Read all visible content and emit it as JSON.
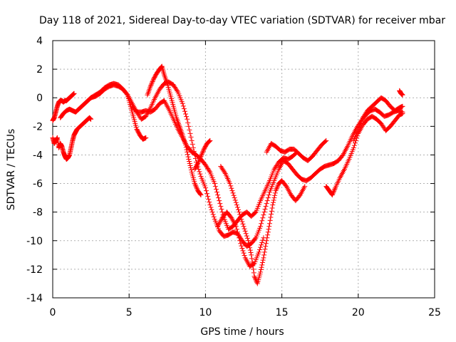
{
  "chart_data": {
    "type": "scatter",
    "title": "Day 118 of 2021, Sidereal Day-to-day VTEC variation (SDTVAR) for receiver mbar",
    "xlabel": "GPS time / hours",
    "ylabel": "SDTVAR / TECUs",
    "xlim": [
      0,
      25
    ],
    "ylim": [
      -14,
      4
    ],
    "xticks": [
      0,
      5,
      10,
      15,
      20,
      25
    ],
    "yticks": [
      -14,
      -12,
      -10,
      -8,
      -6,
      -4,
      -2,
      0,
      2,
      4
    ],
    "grid": true,
    "marker": "plus",
    "color": "#ff0000",
    "series": [
      {
        "points": [
          [
            0.0,
            -1.6
          ],
          [
            0.1,
            -1.4
          ],
          [
            0.2,
            -1.0
          ],
          [
            0.3,
            -0.6
          ],
          [
            0.4,
            -0.3
          ],
          [
            0.5,
            -0.2
          ],
          [
            0.6,
            -0.2
          ],
          [
            0.7,
            -0.3
          ],
          [
            0.8,
            -0.2
          ],
          [
            0.9,
            -0.2
          ],
          [
            1.0,
            -0.1
          ],
          [
            1.1,
            0.0
          ],
          [
            1.2,
            0.1
          ],
          [
            1.3,
            0.2
          ],
          [
            1.4,
            0.3
          ]
        ]
      },
      {
        "points": [
          [
            0.0,
            -2.8
          ],
          [
            0.1,
            -3.2
          ],
          [
            0.2,
            -3.0
          ],
          [
            0.3,
            -2.8
          ],
          [
            0.4,
            -3.5
          ],
          [
            0.5,
            -3.2
          ],
          [
            0.6,
            -3.4
          ],
          [
            0.7,
            -3.8
          ],
          [
            0.8,
            -4.1
          ],
          [
            0.9,
            -4.3
          ],
          [
            1.0,
            -4.2
          ],
          [
            1.1,
            -4.0
          ],
          [
            1.2,
            -3.5
          ],
          [
            1.3,
            -3.0
          ],
          [
            1.4,
            -2.6
          ],
          [
            1.5,
            -2.4
          ],
          [
            1.6,
            -2.2
          ],
          [
            1.8,
            -2.0
          ],
          [
            2.0,
            -1.8
          ],
          [
            2.2,
            -1.6
          ],
          [
            2.4,
            -1.4
          ],
          [
            2.5,
            -1.5
          ]
        ]
      },
      {
        "points": [
          [
            0.5,
            -1.4
          ],
          [
            0.7,
            -1.1
          ],
          [
            0.9,
            -0.9
          ],
          [
            1.1,
            -0.8
          ],
          [
            1.3,
            -0.9
          ],
          [
            1.5,
            -1.0
          ],
          [
            1.7,
            -0.8
          ],
          [
            1.9,
            -0.6
          ],
          [
            2.1,
            -0.4
          ],
          [
            2.3,
            -0.2
          ],
          [
            2.5,
            0.0
          ],
          [
            2.8,
            0.1
          ],
          [
            3.1,
            0.3
          ],
          [
            3.4,
            0.6
          ],
          [
            3.7,
            0.8
          ],
          [
            4.0,
            0.9
          ],
          [
            4.3,
            0.8
          ],
          [
            4.6,
            0.6
          ],
          [
            4.9,
            0.2
          ],
          [
            5.2,
            -0.4
          ],
          [
            5.5,
            -1.0
          ],
          [
            5.8,
            -1.5
          ],
          [
            6.1,
            -1.3
          ],
          [
            6.4,
            -0.7
          ],
          [
            6.7,
            0.0
          ],
          [
            7.0,
            0.6
          ],
          [
            7.3,
            1.0
          ],
          [
            7.6,
            1.1
          ],
          [
            7.9,
            0.9
          ],
          [
            8.2,
            0.4
          ],
          [
            8.5,
            -0.4
          ],
          [
            8.8,
            -1.5
          ],
          [
            9.1,
            -3.0
          ],
          [
            9.4,
            -4.5
          ],
          [
            9.7,
            -5.5
          ],
          [
            10.0,
            -6.3
          ],
          [
            10.3,
            -7.5
          ],
          [
            10.6,
            -8.5
          ],
          [
            10.9,
            -9.3
          ],
          [
            11.2,
            -9.7
          ],
          [
            11.5,
            -9.6
          ],
          [
            11.8,
            -9.4
          ],
          [
            12.1,
            -9.5
          ],
          [
            12.4,
            -10.0
          ],
          [
            12.7,
            -10.4
          ],
          [
            13.0,
            -10.2
          ],
          [
            13.3,
            -9.8
          ],
          [
            13.6,
            -9.0
          ],
          [
            13.9,
            -7.8
          ],
          [
            14.2,
            -6.6
          ],
          [
            14.5,
            -5.8
          ],
          [
            14.8,
            -5.0
          ],
          [
            15.1,
            -4.4
          ],
          [
            15.4,
            -4.6
          ],
          [
            15.7,
            -5.0
          ],
          [
            16.0,
            -5.4
          ],
          [
            16.3,
            -5.7
          ],
          [
            16.6,
            -5.8
          ],
          [
            16.9,
            -5.6
          ],
          [
            17.2,
            -5.3
          ],
          [
            17.5,
            -5.0
          ],
          [
            17.8,
            -4.8
          ],
          [
            18.1,
            -4.7
          ],
          [
            18.4,
            -4.6
          ],
          [
            18.7,
            -4.4
          ],
          [
            19.0,
            -4.0
          ],
          [
            19.3,
            -3.4
          ],
          [
            19.6,
            -2.7
          ],
          [
            19.9,
            -2.1
          ],
          [
            20.2,
            -1.6
          ],
          [
            20.5,
            -1.2
          ],
          [
            20.8,
            -0.9
          ],
          [
            21.1,
            -0.8
          ],
          [
            21.4,
            -1.0
          ],
          [
            21.7,
            -1.3
          ],
          [
            22.0,
            -1.2
          ],
          [
            22.3,
            -1.0
          ],
          [
            22.6,
            -0.9
          ],
          [
            22.9,
            -1.0
          ]
        ]
      },
      {
        "points": [
          [
            2.5,
            0.0
          ],
          [
            2.8,
            0.2
          ],
          [
            3.1,
            0.4
          ],
          [
            3.4,
            0.7
          ],
          [
            3.7,
            0.9
          ],
          [
            4.0,
            1.0
          ],
          [
            4.3,
            0.9
          ],
          [
            4.6,
            0.6
          ],
          [
            4.9,
            0.2
          ],
          [
            5.1,
            -0.6
          ],
          [
            5.3,
            -1.4
          ],
          [
            5.5,
            -2.2
          ],
          [
            5.7,
            -2.6
          ],
          [
            5.9,
            -2.9
          ],
          [
            6.1,
            -2.8
          ]
        ]
      },
      {
        "points": [
          [
            6.2,
            0.2
          ],
          [
            6.4,
            0.8
          ],
          [
            6.6,
            1.3
          ],
          [
            6.8,
            1.7
          ],
          [
            7.0,
            2.0
          ],
          [
            7.15,
            2.2
          ],
          [
            7.3,
            1.6
          ],
          [
            7.5,
            1.0
          ],
          [
            7.7,
            0.2
          ],
          [
            7.9,
            -0.6
          ],
          [
            8.1,
            -1.4
          ],
          [
            8.3,
            -2.0
          ],
          [
            8.5,
            -2.6
          ],
          [
            8.7,
            -3.3
          ],
          [
            8.9,
            -4.3
          ],
          [
            9.1,
            -5.2
          ],
          [
            9.3,
            -6.0
          ],
          [
            9.5,
            -6.5
          ],
          [
            9.7,
            -6.8
          ]
        ]
      },
      {
        "points": [
          [
            5.2,
            -0.6
          ],
          [
            5.5,
            -1.0
          ],
          [
            5.8,
            -1.0
          ],
          [
            6.1,
            -0.9
          ],
          [
            6.4,
            -1.0
          ],
          [
            6.7,
            -0.8
          ],
          [
            7.0,
            -0.4
          ],
          [
            7.3,
            -0.2
          ],
          [
            7.6,
            -0.8
          ],
          [
            7.9,
            -1.5
          ],
          [
            8.2,
            -2.2
          ],
          [
            8.5,
            -2.8
          ],
          [
            8.8,
            -3.4
          ],
          [
            9.1,
            -3.8
          ],
          [
            9.4,
            -4.0
          ],
          [
            9.7,
            -4.3
          ],
          [
            10.0,
            -4.7
          ],
          [
            10.3,
            -5.2
          ],
          [
            10.6,
            -6.0
          ],
          [
            10.9,
            -7.2
          ],
          [
            11.2,
            -8.4
          ],
          [
            11.5,
            -9.2
          ],
          [
            11.8,
            -9.0
          ],
          [
            12.1,
            -8.6
          ],
          [
            12.4,
            -8.2
          ],
          [
            12.7,
            -8.0
          ],
          [
            13.0,
            -8.3
          ],
          [
            13.3,
            -8.0
          ],
          [
            13.6,
            -7.2
          ],
          [
            13.9,
            -6.5
          ],
          [
            14.2,
            -5.8
          ],
          [
            14.5,
            -5.0
          ],
          [
            14.8,
            -4.5
          ],
          [
            15.1,
            -4.2
          ],
          [
            15.4,
            -4.3
          ],
          [
            15.7,
            -4.1
          ],
          [
            16.0,
            -3.8
          ]
        ]
      },
      {
        "points": [
          [
            9.3,
            -5.0
          ],
          [
            9.5,
            -4.6
          ],
          [
            9.7,
            -4.1
          ],
          [
            9.9,
            -3.6
          ],
          [
            10.1,
            -3.2
          ],
          [
            10.3,
            -3.0
          ]
        ]
      },
      {
        "points": [
          [
            11.0,
            -4.8
          ],
          [
            11.3,
            -5.3
          ],
          [
            11.6,
            -6.0
          ],
          [
            11.9,
            -7.0
          ],
          [
            12.2,
            -8.0
          ],
          [
            12.5,
            -9.0
          ],
          [
            12.8,
            -10.0
          ],
          [
            13.0,
            -11.0
          ],
          [
            13.2,
            -12.5
          ],
          [
            13.4,
            -13.0
          ],
          [
            13.6,
            -12.2
          ],
          [
            13.8,
            -11.2
          ],
          [
            14.0,
            -10.0
          ],
          [
            14.2,
            -8.8
          ],
          [
            14.4,
            -7.5
          ],
          [
            14.6,
            -6.5
          ],
          [
            14.8,
            -6.0
          ],
          [
            15.0,
            -5.8
          ],
          [
            15.3,
            -6.2
          ],
          [
            15.6,
            -6.8
          ],
          [
            15.9,
            -7.2
          ],
          [
            16.2,
            -6.8
          ],
          [
            16.5,
            -6.2
          ]
        ]
      },
      {
        "points": [
          [
            10.8,
            -9.0
          ],
          [
            11.1,
            -8.4
          ],
          [
            11.4,
            -8.0
          ],
          [
            11.7,
            -8.4
          ],
          [
            12.0,
            -9.0
          ],
          [
            12.3,
            -10.2
          ],
          [
            12.6,
            -11.2
          ],
          [
            12.9,
            -11.8
          ],
          [
            13.2,
            -11.6
          ],
          [
            13.5,
            -10.8
          ],
          [
            13.8,
            -9.8
          ]
        ]
      },
      {
        "points": [
          [
            14.0,
            -3.8
          ],
          [
            14.3,
            -3.2
          ],
          [
            14.6,
            -3.4
          ],
          [
            14.9,
            -3.7
          ],
          [
            15.2,
            -3.8
          ],
          [
            15.5,
            -3.6
          ],
          [
            15.8,
            -3.6
          ],
          [
            16.1,
            -3.9
          ],
          [
            16.4,
            -4.2
          ],
          [
            16.7,
            -4.4
          ],
          [
            17.0,
            -4.1
          ],
          [
            17.3,
            -3.7
          ],
          [
            17.6,
            -3.3
          ],
          [
            17.9,
            -3.0
          ]
        ]
      },
      {
        "points": [
          [
            17.9,
            -6.2
          ],
          [
            18.1,
            -6.5
          ],
          [
            18.3,
            -6.8
          ],
          [
            18.5,
            -6.3
          ],
          [
            18.8,
            -5.6
          ],
          [
            19.1,
            -5.0
          ],
          [
            19.4,
            -4.3
          ],
          [
            19.7,
            -3.5
          ],
          [
            20.0,
            -2.5
          ],
          [
            20.3,
            -1.9
          ],
          [
            20.6,
            -1.5
          ],
          [
            20.9,
            -1.3
          ],
          [
            21.2,
            -1.5
          ],
          [
            21.5,
            -1.8
          ],
          [
            21.8,
            -2.3
          ],
          [
            22.1,
            -2.0
          ],
          [
            22.4,
            -1.6
          ],
          [
            22.7,
            -1.2
          ],
          [
            22.9,
            -1.1
          ]
        ]
      },
      {
        "points": [
          [
            19.7,
            -3.0
          ],
          [
            20.0,
            -2.2
          ],
          [
            20.3,
            -1.4
          ],
          [
            20.6,
            -0.9
          ],
          [
            20.9,
            -0.6
          ],
          [
            21.2,
            -0.3
          ],
          [
            21.5,
            0.0
          ],
          [
            21.8,
            -0.2
          ],
          [
            22.1,
            -0.6
          ],
          [
            22.4,
            -0.9
          ],
          [
            22.7,
            -0.7
          ],
          [
            22.9,
            -0.6
          ]
        ]
      },
      {
        "points": [
          [
            22.7,
            0.5
          ],
          [
            22.8,
            0.3
          ],
          [
            22.9,
            0.2
          ]
        ]
      }
    ]
  }
}
